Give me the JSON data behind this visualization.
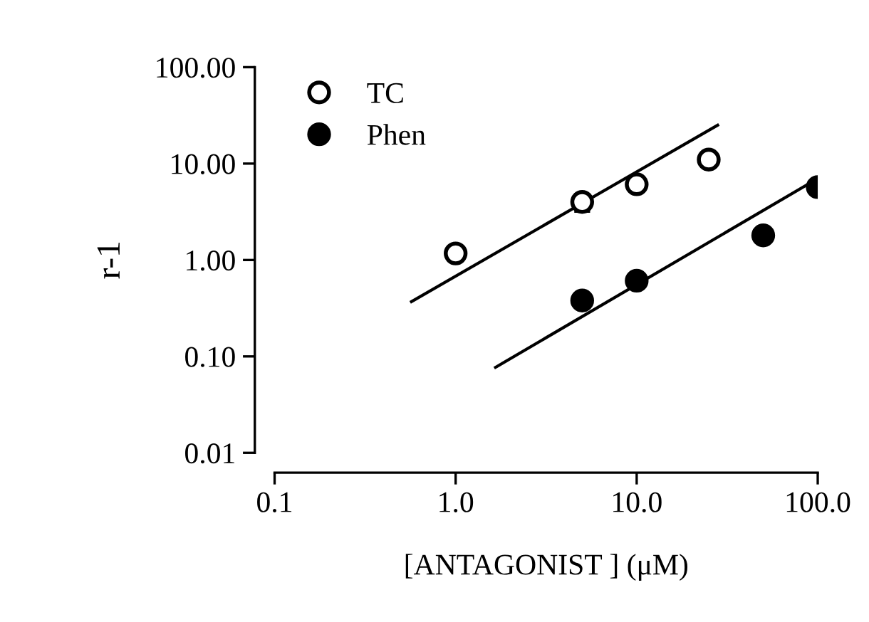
{
  "chart_data": {
    "type": "scatter",
    "xlabel": "[ANTAGONIST ] (μM)",
    "ylabel": "r-1",
    "log": "xy",
    "xlim": [
      0.1,
      100
    ],
    "xticks": [
      0.1,
      {
        "value": 1,
        "label": "1.0"
      },
      {
        "value": 10,
        "label": "10.0"
      },
      {
        "value": 100,
        "label": "100.0"
      }
    ],
    "ylim": [
      0.01,
      100
    ],
    "yticks": [
      {
        "value": 0.01,
        "label": "0.01"
      },
      {
        "value": 0.1,
        "label": "0.10"
      },
      {
        "value": 1,
        "label": "1.00"
      },
      {
        "value": 10,
        "label": "10.00"
      },
      {
        "value": 100,
        "label": "100.00"
      }
    ],
    "grid": false,
    "legend": "top left",
    "series": [
      {
        "name": "TC",
        "color": "#ffffff",
        "marker": "circle",
        "x": [
          1,
          5,
          10,
          25
        ],
        "values": [
          1.17,
          4.0,
          6.1,
          11
        ],
        "errors": [
          null,
          0.8,
          null,
          null
        ]
      },
      {
        "name": "Phen",
        "color": "#000000",
        "marker": "circle",
        "x": [
          5,
          10,
          50,
          100
        ],
        "values": [
          0.38,
          0.61,
          1.8,
          5.7
        ]
      },
      {
        "type": "line",
        "color": "#000000",
        "x": [
          0.57,
          28
        ],
        "values": [
          0.37,
          25
        ]
      },
      {
        "type": "line",
        "color": "#000000",
        "x": [
          1.66,
          100
        ],
        "values": [
          0.077,
          7
        ]
      }
    ]
  }
}
